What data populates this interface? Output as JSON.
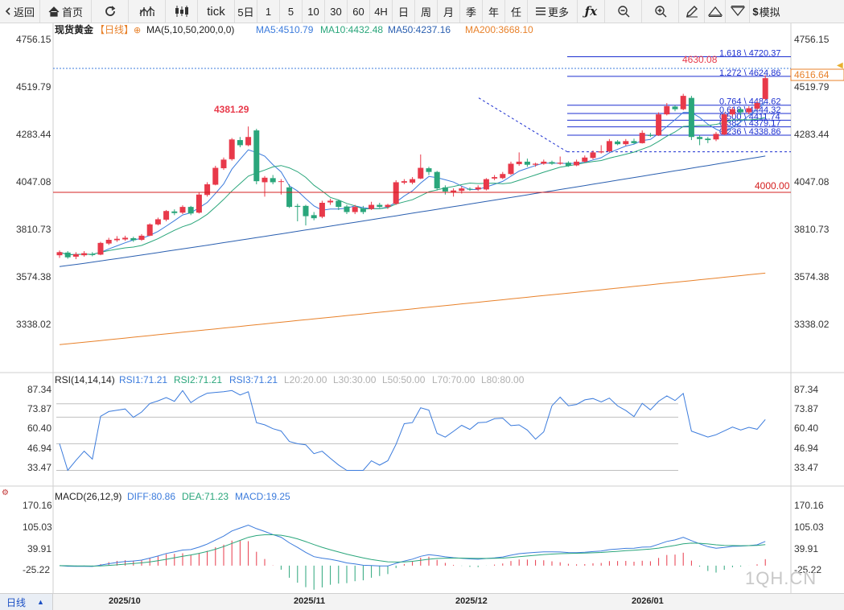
{
  "toolbar": {
    "back_label": "返回",
    "home_label": "首页",
    "tick_label": "tick",
    "periods": [
      "5日",
      "1",
      "5",
      "10",
      "30",
      "60",
      "4H",
      "日",
      "周",
      "月",
      "季",
      "年",
      "任"
    ],
    "more_label": "更多",
    "sim_label": "模拟"
  },
  "main_legend": {
    "symbol": "现货黄金",
    "period_tag": "【日线】",
    "ma_params": "MA(5,10,50,200,0,0)",
    "ma5": "MA5:4510.79",
    "ma10": "MA10:4432.48",
    "ma50": "MA50:4237.16",
    "ma200": "MA200:3668.10"
  },
  "rsi_legend": {
    "params": "RSI(14,14,14)",
    "rsi1": "RSI1:71.21",
    "rsi2": "RSI2:71.21",
    "rsi3": "RSI3:71.21",
    "l20": "L20:20.00",
    "l30": "L30:30.00",
    "l50": "L50:50.00",
    "l70": "L70:70.00",
    "l80": "L80:80.00"
  },
  "macd_legend": {
    "params": "MACD(26,12,9)",
    "diff": "DIFF:80.86",
    "dea": "DEA:71.23",
    "macd": "MACD:19.25"
  },
  "price_axis_labels": [
    "4756.15",
    "4519.79",
    "4283.44",
    "4047.08",
    "3810.73",
    "3574.38",
    "3338.02"
  ],
  "rsi_axis_labels": [
    "87.34",
    "73.87",
    "60.40",
    "46.94",
    "33.47"
  ],
  "macd_axis_labels": [
    "170.16",
    "105.03",
    "39.91",
    "-25.22"
  ],
  "annotations": {
    "high_label": "4381.29",
    "last_high_label": "4630.08",
    "current_price": "4616.64",
    "level_4000": "4000.00",
    "fib_levels": [
      "1.618 \\ 4720.37",
      "1.272 \\ 4624.86",
      "0.764 \\ 4484.62",
      "0.618 \\ 4444.32",
      "0.500 \\ 4411.74",
      "0.382 \\ 4379.17",
      "0.236 \\ 4338.86"
    ]
  },
  "date_labels": [
    "2025/10",
    "2025/11",
    "2025/12",
    "2026/01"
  ],
  "period_select": "日线",
  "watermark": "1QH.CN",
  "colors": {
    "up": "#e8394a",
    "down": "#2aa67b",
    "ma5": "#3b7bdc",
    "ma10": "#2aa67b",
    "ma50": "#2a5fb0",
    "ma200": "#e8812a",
    "fib": "#1c2fd0"
  },
  "chart_data": {
    "type": "candlestick",
    "candles": [
      {
        "o": 3755,
        "c": 3770,
        "h": 3778,
        "l": 3742
      },
      {
        "o": 3768,
        "c": 3745,
        "h": 3775,
        "l": 3738
      },
      {
        "o": 3748,
        "c": 3760,
        "h": 3770,
        "l": 3736
      },
      {
        "o": 3755,
        "c": 3765,
        "h": 3775,
        "l": 3748
      },
      {
        "o": 3760,
        "c": 3758,
        "h": 3770,
        "l": 3750
      },
      {
        "o": 3758,
        "c": 3815,
        "h": 3820,
        "l": 3755
      },
      {
        "o": 3812,
        "c": 3830,
        "h": 3840,
        "l": 3805
      },
      {
        "o": 3828,
        "c": 3835,
        "h": 3848,
        "l": 3820
      },
      {
        "o": 3832,
        "c": 3840,
        "h": 3850,
        "l": 3825
      },
      {
        "o": 3838,
        "c": 3828,
        "h": 3845,
        "l": 3820
      },
      {
        "o": 3830,
        "c": 3850,
        "h": 3858,
        "l": 3825
      },
      {
        "o": 3850,
        "c": 3905,
        "h": 3910,
        "l": 3848
      },
      {
        "o": 3905,
        "c": 3930,
        "h": 3938,
        "l": 3900
      },
      {
        "o": 3928,
        "c": 3970,
        "h": 3975,
        "l": 3920
      },
      {
        "o": 3968,
        "c": 3960,
        "h": 3978,
        "l": 3950
      },
      {
        "o": 3962,
        "c": 3990,
        "h": 3998,
        "l": 3955
      },
      {
        "o": 3990,
        "c": 3958,
        "h": 3995,
        "l": 3950
      },
      {
        "o": 3962,
        "c": 4050,
        "h": 4060,
        "l": 3958
      },
      {
        "o": 4048,
        "c": 4100,
        "h": 4110,
        "l": 4040
      },
      {
        "o": 4098,
        "c": 4180,
        "h": 4190,
        "l": 4095
      },
      {
        "o": 4178,
        "c": 4220,
        "h": 4230,
        "l": 4170
      },
      {
        "o": 4222,
        "c": 4318,
        "h": 4325,
        "l": 4215
      },
      {
        "o": 4315,
        "c": 4290,
        "h": 4330,
        "l": 4280
      },
      {
        "o": 4290,
        "c": 4330,
        "h": 4381,
        "l": 4285
      },
      {
        "o": 4362,
        "c": 4115,
        "h": 4370,
        "l": 4100
      },
      {
        "o": 4110,
        "c": 4132,
        "h": 4140,
        "l": 4040
      },
      {
        "o": 4130,
        "c": 4110,
        "h": 4145,
        "l": 4100
      },
      {
        "o": 4112,
        "c": 4115,
        "h": 4125,
        "l": 4050
      },
      {
        "o": 4085,
        "c": 3990,
        "h": 4100,
        "l": 3985
      },
      {
        "o": 3995,
        "c": 3990,
        "h": 4005,
        "l": 3920
      },
      {
        "o": 3995,
        "c": 3945,
        "h": 4000,
        "l": 3900
      },
      {
        "o": 3950,
        "c": 3935,
        "h": 3965,
        "l": 3925
      },
      {
        "o": 3942,
        "c": 4010,
        "h": 4020,
        "l": 3935
      },
      {
        "o": 4012,
        "c": 4020,
        "h": 4030,
        "l": 4000
      },
      {
        "o": 4020,
        "c": 3990,
        "h": 4025,
        "l": 3975
      },
      {
        "o": 3992,
        "c": 3965,
        "h": 4000,
        "l": 3955
      },
      {
        "o": 3965,
        "c": 3990,
        "h": 4000,
        "l": 3955
      },
      {
        "o": 3982,
        "c": 3965,
        "h": 3995,
        "l": 3955
      },
      {
        "o": 3980,
        "c": 4000,
        "h": 4015,
        "l": 3975
      },
      {
        "o": 4000,
        "c": 3990,
        "h": 4010,
        "l": 3985
      },
      {
        "o": 3990,
        "c": 4000,
        "h": 4005,
        "l": 3980
      },
      {
        "o": 4005,
        "c": 4110,
        "h": 4120,
        "l": 4000
      },
      {
        "o": 4108,
        "c": 4115,
        "h": 4125,
        "l": 4100
      },
      {
        "o": 4108,
        "c": 4125,
        "h": 4135,
        "l": 4100
      },
      {
        "o": 4128,
        "c": 4180,
        "h": 4245,
        "l": 4125
      },
      {
        "o": 4178,
        "c": 4160,
        "h": 4185,
        "l": 4145
      },
      {
        "o": 4160,
        "c": 4080,
        "h": 4165,
        "l": 4070
      },
      {
        "o": 4085,
        "c": 4065,
        "h": 4095,
        "l": 4050
      },
      {
        "o": 4060,
        "c": 4070,
        "h": 4080,
        "l": 4040
      },
      {
        "o": 4068,
        "c": 4080,
        "h": 4090,
        "l": 4055
      },
      {
        "o": 4078,
        "c": 4075,
        "h": 4085,
        "l": 4068
      },
      {
        "o": 4075,
        "c": 4085,
        "h": 4095,
        "l": 4068
      },
      {
        "o": 4075,
        "c": 4125,
        "h": 4130,
        "l": 4070
      },
      {
        "o": 4128,
        "c": 4135,
        "h": 4145,
        "l": 4120
      },
      {
        "o": 4130,
        "c": 4150,
        "h": 4160,
        "l": 4125
      },
      {
        "o": 4150,
        "c": 4200,
        "h": 4210,
        "l": 4145
      },
      {
        "o": 4198,
        "c": 4210,
        "h": 4255,
        "l": 4190
      },
      {
        "o": 4210,
        "c": 4195,
        "h": 4225,
        "l": 4185
      },
      {
        "o": 4195,
        "c": 4200,
        "h": 4205,
        "l": 4185
      },
      {
        "o": 4200,
        "c": 4210,
        "h": 4220,
        "l": 4195
      },
      {
        "o": 4208,
        "c": 4200,
        "h": 4215,
        "l": 4195
      },
      {
        "o": 4200,
        "c": 4205,
        "h": 4235,
        "l": 4195
      },
      {
        "o": 4205,
        "c": 4190,
        "h": 4212,
        "l": 4185
      },
      {
        "o": 4192,
        "c": 4210,
        "h": 4220,
        "l": 4188
      },
      {
        "o": 4210,
        "c": 4230,
        "h": 4240,
        "l": 4205
      },
      {
        "o": 4228,
        "c": 4255,
        "h": 4265,
        "l": 4222
      },
      {
        "o": 4255,
        "c": 4260,
        "h": 4290,
        "l": 4250
      },
      {
        "o": 4260,
        "c": 4310,
        "h": 4320,
        "l": 4255
      },
      {
        "o": 4308,
        "c": 4295,
        "h": 4315,
        "l": 4290
      },
      {
        "o": 4295,
        "c": 4310,
        "h": 4320,
        "l": 4288
      },
      {
        "o": 4310,
        "c": 4300,
        "h": 4322,
        "l": 4295
      },
      {
        "o": 4300,
        "c": 4350,
        "h": 4362,
        "l": 4298
      },
      {
        "o": 4340,
        "c": 4335,
        "h": 4350,
        "l": 4330
      },
      {
        "o": 4338,
        "c": 4440,
        "h": 4450,
        "l": 4335
      },
      {
        "o": 4440,
        "c": 4480,
        "h": 4495,
        "l": 4435
      },
      {
        "o": 4478,
        "c": 4465,
        "h": 4485,
        "l": 4455
      },
      {
        "o": 4465,
        "c": 4530,
        "h": 4540,
        "l": 4460
      },
      {
        "o": 4520,
        "c": 4330,
        "h": 4530,
        "l": 4315
      },
      {
        "o": 4330,
        "c": 4320,
        "h": 4340,
        "l": 4290
      },
      {
        "o": 4322,
        "c": 4315,
        "h": 4330,
        "l": 4300
      },
      {
        "o": 4318,
        "c": 4345,
        "h": 4355,
        "l": 4310
      },
      {
        "o": 4342,
        "c": 4440,
        "h": 4450,
        "l": 4338
      },
      {
        "o": 4440,
        "c": 4465,
        "h": 4475,
        "l": 4430
      },
      {
        "o": 4465,
        "c": 4450,
        "h": 4472,
        "l": 4435
      },
      {
        "o": 4450,
        "c": 4470,
        "h": 4480,
        "l": 4440
      },
      {
        "o": 4468,
        "c": 4495,
        "h": 4505,
        "l": 4460
      },
      {
        "o": 4515,
        "c": 4616,
        "h": 4630,
        "l": 4510
      }
    ],
    "price_range": [
      3200,
      4820
    ],
    "rsi_range": [
      20,
      95
    ],
    "macd_range": [
      -80,
      200
    ],
    "x_labels": [
      "2025/10",
      "2025/11",
      "2025/12",
      "2026/01"
    ],
    "x_label_index": [
      7,
      36,
      62,
      91
    ],
    "horizontal_line": 4000,
    "fib_values": [
      4720.37,
      4624.86,
      4484.62,
      4444.32,
      4411.74,
      4379.17,
      4338.86
    ]
  }
}
